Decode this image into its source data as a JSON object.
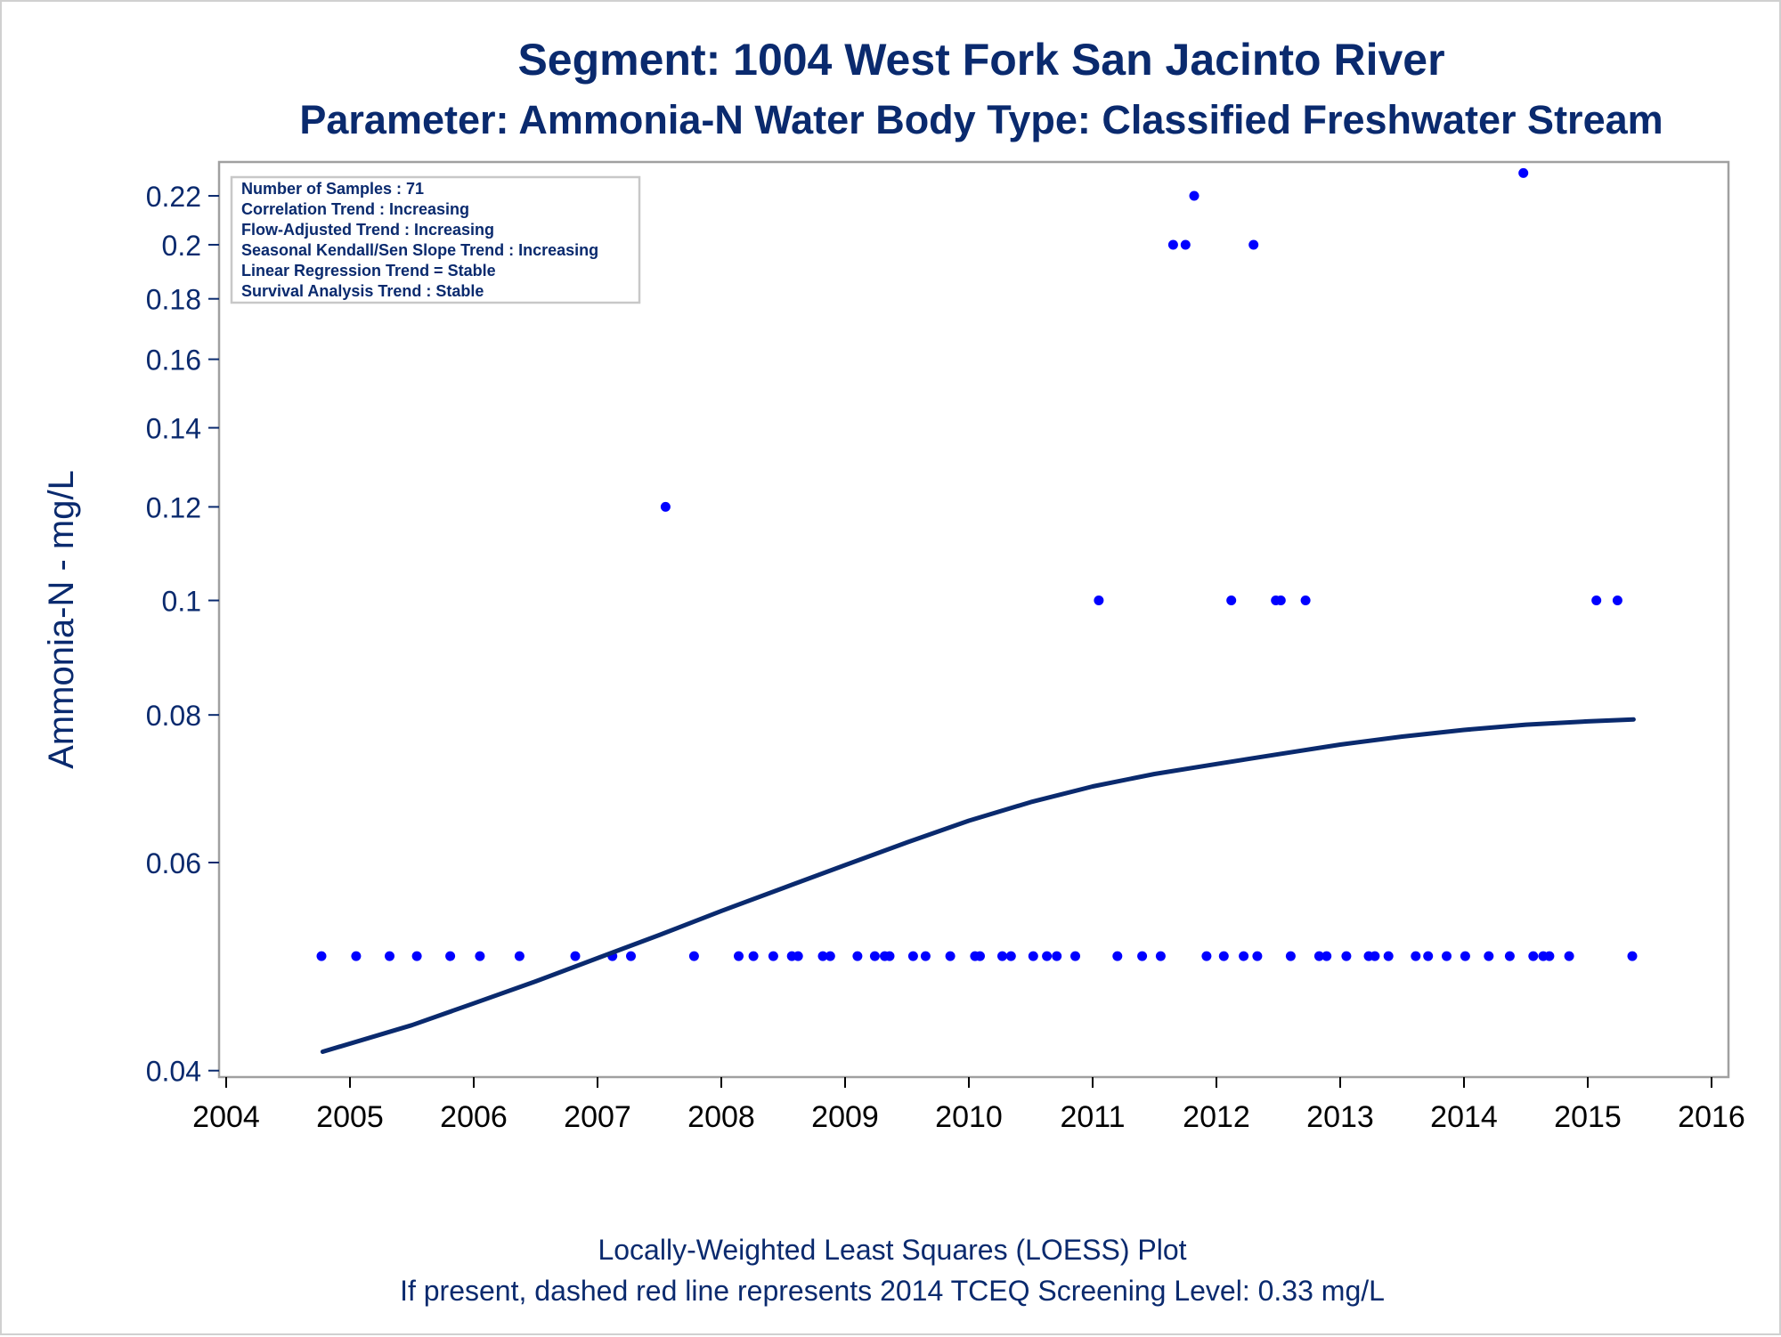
{
  "chart_data": {
    "type": "scatter",
    "title": "Segment: 1004  West Fork San Jacinto River",
    "subtitle": "Parameter: Ammonia-N   Water Body Type: Classified Freshwater Stream",
    "ylabel": "Ammonia-N - mg/L",
    "xlabel": "",
    "yscale": "log",
    "ylim": [
      0.0395,
      0.235
    ],
    "xlim": [
      2004,
      2016
    ],
    "y_ticks": [
      0.04,
      0.06,
      0.08,
      0.1,
      0.12,
      0.14,
      0.16,
      0.18,
      0.2,
      0.22
    ],
    "y_tick_labels": [
      "0.04",
      "0.06",
      "0.08",
      "0.1",
      "0.12",
      "0.14",
      "0.16",
      "0.18",
      "0.2",
      "0.22"
    ],
    "x_ticks": [
      2004,
      2005,
      2006,
      2007,
      2008,
      2009,
      2010,
      2011,
      2012,
      2013,
      2014,
      2015,
      2016
    ],
    "x_tick_labels": [
      "2004",
      "2005",
      "2006",
      "2007",
      "2008",
      "2009",
      "2010",
      "2011",
      "2012",
      "2013",
      "2014",
      "2015",
      "2016"
    ],
    "grid": false,
    "legend_box": {
      "placement": "top-left",
      "lines": [
        "Number of Samples : 71",
        "Correlation Trend : Increasing",
        "Flow-Adjusted Trend : Increasing",
        "Seasonal Kendall/Sen Slope Trend : Increasing",
        "Linear Regression Trend = Stable",
        "Survival Analysis Trend : Stable"
      ]
    },
    "footnotes": [
      "Locally-Weighted Least Squares (LOESS) Plot",
      "If present, dashed red line represents 2014 TCEQ Screening Level: 0.33 mg/L"
    ],
    "series": [
      {
        "kind": "scatter",
        "color": "#0000ff",
        "x": [
          2004.77,
          2005.05,
          2005.32,
          2005.54,
          2005.81,
          2006.05,
          2006.37,
          2006.82,
          2007.12,
          2007.27,
          2007.55,
          2007.78,
          2008.14,
          2008.26,
          2008.42,
          2008.57,
          2008.62,
          2008.82,
          2008.88,
          2009.1,
          2009.24,
          2009.32,
          2009.36,
          2009.55,
          2009.65,
          2009.85,
          2010.05,
          2010.09,
          2010.27,
          2010.34,
          2010.52,
          2010.63,
          2010.71,
          2010.86,
          2011.05,
          2011.2,
          2011.4,
          2011.55,
          2011.65,
          2011.75,
          2011.82,
          2011.92,
          2012.06,
          2012.12,
          2012.22,
          2012.3,
          2012.33,
          2012.48,
          2012.52,
          2012.6,
          2012.72,
          2012.83,
          2012.89,
          2013.05,
          2013.23,
          2013.28,
          2013.39,
          2013.61,
          2013.71,
          2013.86,
          2014.01,
          2014.2,
          2014.37,
          2014.48,
          2014.56,
          2014.64,
          2014.69,
          2014.85,
          2015.07,
          2015.24,
          2015.36
        ],
        "y": [
          0.05,
          0.05,
          0.05,
          0.05,
          0.05,
          0.05,
          0.05,
          0.05,
          0.05,
          0.05,
          0.12,
          0.05,
          0.05,
          0.05,
          0.05,
          0.05,
          0.05,
          0.05,
          0.05,
          0.05,
          0.05,
          0.05,
          0.05,
          0.05,
          0.05,
          0.05,
          0.05,
          0.05,
          0.05,
          0.05,
          0.05,
          0.05,
          0.05,
          0.05,
          0.1,
          0.05,
          0.05,
          0.05,
          0.2,
          0.2,
          0.22,
          0.05,
          0.05,
          0.1,
          0.05,
          0.2,
          0.05,
          0.1,
          0.1,
          0.05,
          0.1,
          0.05,
          0.05,
          0.05,
          0.05,
          0.05,
          0.05,
          0.05,
          0.05,
          0.05,
          0.05,
          0.05,
          0.05,
          0.23,
          0.05,
          0.05,
          0.05,
          0.05,
          0.1,
          0.1,
          0.05
        ]
      },
      {
        "kind": "loess-line",
        "color": "#0a2a6e",
        "x": [
          2004.78,
          2005.5,
          2006.0,
          2006.5,
          2007.0,
          2007.5,
          2008.0,
          2008.5,
          2009.0,
          2009.5,
          2010.0,
          2010.5,
          2011.0,
          2011.5,
          2012.0,
          2012.5,
          2013.0,
          2013.5,
          2014.0,
          2014.5,
          2015.0,
          2015.37
        ],
        "y": [
          0.0415,
          0.0437,
          0.0456,
          0.0476,
          0.0498,
          0.0521,
          0.0546,
          0.0571,
          0.0597,
          0.0624,
          0.0651,
          0.0675,
          0.0696,
          0.0713,
          0.0727,
          0.0741,
          0.0755,
          0.0767,
          0.0777,
          0.0785,
          0.079,
          0.0793
        ]
      }
    ]
  }
}
